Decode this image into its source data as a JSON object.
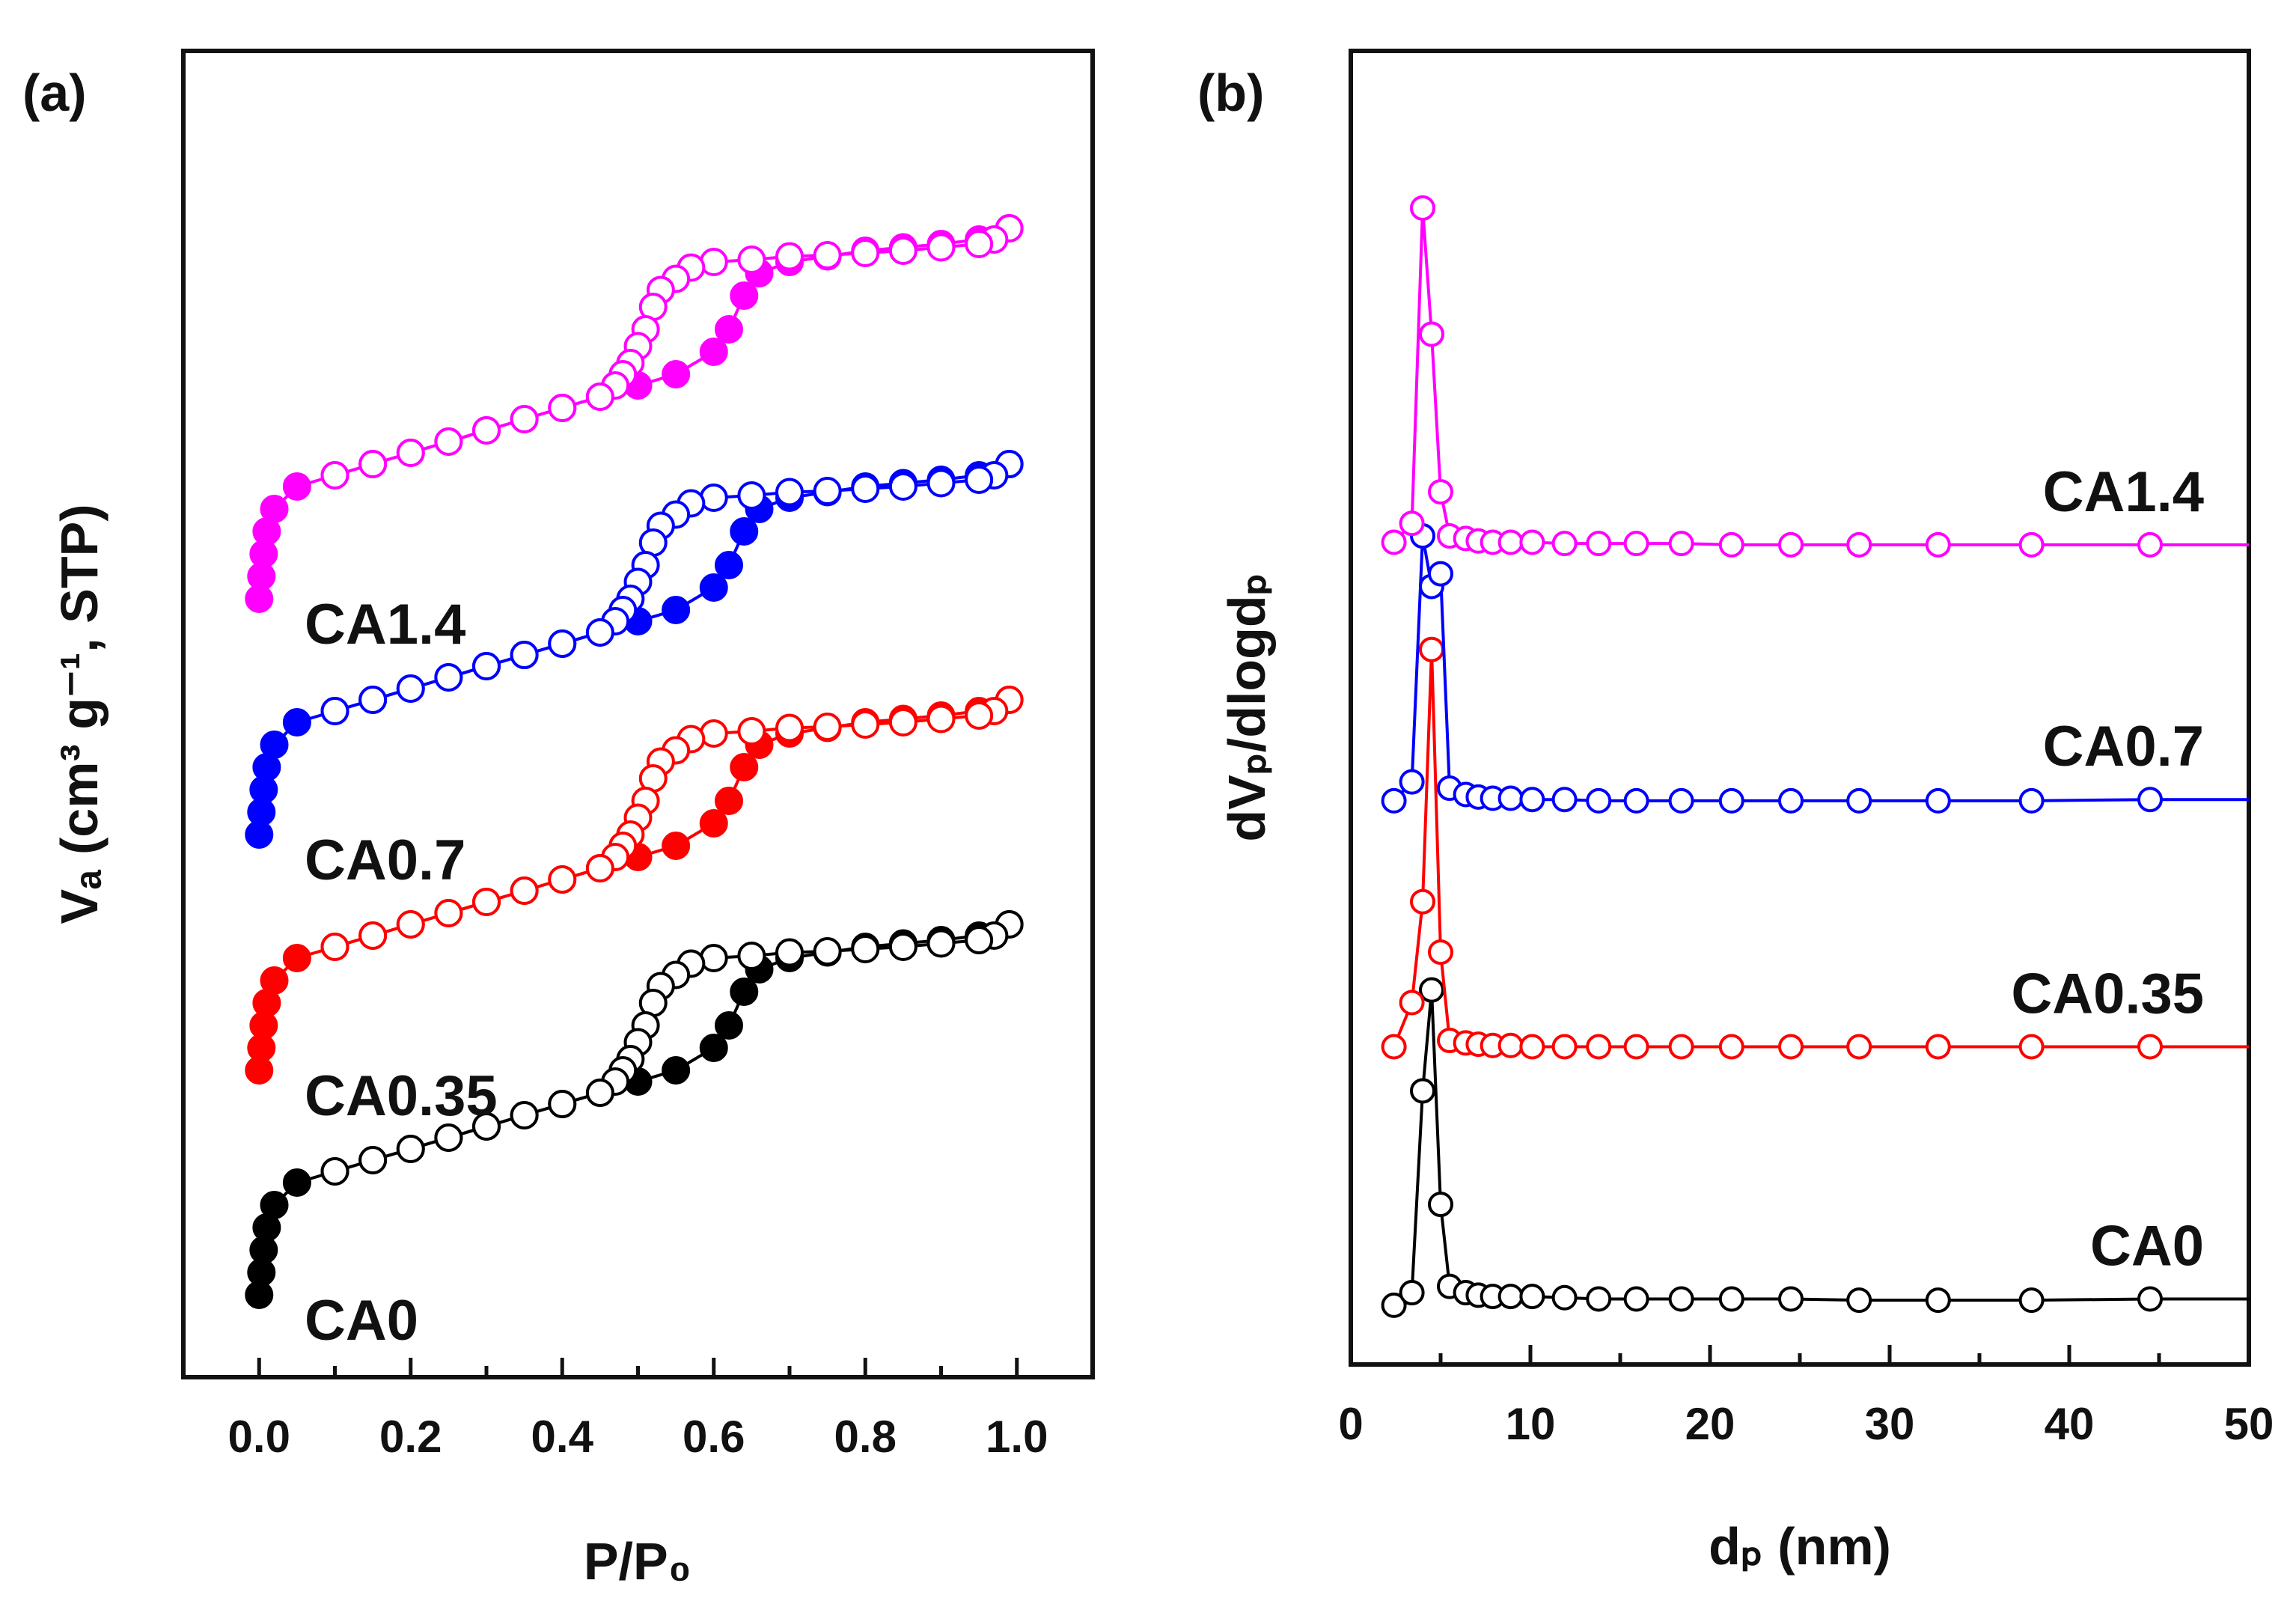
{
  "chart_data": [
    {
      "panel": "(a)",
      "type": "scatter",
      "subtype": "N2 adsorption-desorption isotherms (vertically offset, open = desorption, filled = adsorption)",
      "xlabel": "P/P₀",
      "ylabel": "Vₐ (cm³ g⁻¹, STP)",
      "xlim": [
        -0.1,
        1.1
      ],
      "ylim": [
        0,
        100
      ],
      "yticks_shown": false,
      "xticks": [
        "0.0",
        "0.2",
        "0.4",
        "0.6",
        "0.8",
        "1.0"
      ],
      "grid": false,
      "series": [
        {
          "name": "CA0",
          "label": "CA0",
          "color": "#000000",
          "adsorption": {
            "x": [
              0.0,
              0.003,
              0.006,
              0.01,
              0.02,
              0.05,
              0.1,
              0.15,
              0.2,
              0.25,
              0.3,
              0.35,
              0.4,
              0.45,
              0.5,
              0.55,
              0.6,
              0.62,
              0.64,
              0.66,
              0.7,
              0.75,
              0.8,
              0.85,
              0.9,
              0.95,
              0.99
            ],
            "y": [
              2,
              4,
              6,
              8,
              10,
              12,
              13,
              14,
              15,
              16,
              17,
              18,
              19,
              20,
              21,
              22,
              24,
              26,
              29,
              31,
              32,
              32.5,
              33,
              33.3,
              33.6,
              34,
              35
            ]
          },
          "desorption": {
            "x": [
              0.99,
              0.97,
              0.95,
              0.9,
              0.85,
              0.8,
              0.75,
              0.7,
              0.65,
              0.6,
              0.57,
              0.55,
              0.53,
              0.52,
              0.51,
              0.5,
              0.49,
              0.48,
              0.47,
              0.45,
              0.4,
              0.35,
              0.3,
              0.25,
              0.2,
              0.15,
              0.1
            ],
            "y": [
              35,
              34,
              33.6,
              33.3,
              33,
              32.8,
              32.6,
              32.5,
              32.2,
              32,
              31.5,
              30.5,
              29.5,
              28,
              26,
              24.5,
              23,
              22,
              21,
              20,
              19,
              18,
              17,
              16,
              15,
              14,
              13
            ]
          }
        },
        {
          "name": "CA0.35",
          "label": "CA0.35",
          "color": "#ff0000",
          "adsorption": {
            "x": [
              0.0,
              0.003,
              0.006,
              0.01,
              0.02,
              0.05,
              0.1,
              0.15,
              0.2,
              0.25,
              0.3,
              0.35,
              0.4,
              0.45,
              0.5,
              0.55,
              0.6,
              0.62,
              0.64,
              0.66,
              0.7,
              0.75,
              0.8,
              0.85,
              0.9,
              0.95,
              0.99
            ],
            "y": [
              22,
              24,
              26,
              28,
              30,
              32,
              33,
              34,
              35,
              36,
              37,
              38,
              39,
              40,
              41,
              42,
              44,
              46,
              49,
              51,
              52,
              52.5,
              53,
              53.3,
              53.6,
              54,
              55
            ]
          },
          "desorption": {
            "x": [
              0.99,
              0.97,
              0.95,
              0.9,
              0.85,
              0.8,
              0.75,
              0.7,
              0.65,
              0.6,
              0.57,
              0.55,
              0.53,
              0.52,
              0.51,
              0.5,
              0.49,
              0.48,
              0.47,
              0.45,
              0.4,
              0.35,
              0.3,
              0.25,
              0.2,
              0.15,
              0.1
            ],
            "y": [
              55,
              54,
              53.6,
              53.3,
              53,
              52.8,
              52.6,
              52.5,
              52.2,
              52,
              51.5,
              50.5,
              49.5,
              48,
              46,
              44.5,
              43,
              42,
              41,
              40,
              39,
              38,
              37,
              36,
              35,
              34,
              33
            ]
          }
        },
        {
          "name": "CA0.7",
          "label": "CA0.7",
          "color": "#0000ff",
          "adsorption": {
            "x": [
              0.0,
              0.003,
              0.006,
              0.01,
              0.02,
              0.05,
              0.1,
              0.15,
              0.2,
              0.25,
              0.3,
              0.35,
              0.4,
              0.45,
              0.5,
              0.55,
              0.6,
              0.62,
              0.64,
              0.66,
              0.7,
              0.75,
              0.8,
              0.85,
              0.9,
              0.95,
              0.99
            ],
            "y": [
              43,
              45,
              47,
              49,
              51,
              53,
              54,
              55,
              56,
              57,
              58,
              59,
              60,
              61,
              62,
              63,
              65,
              67,
              70,
              72,
              73,
              73.5,
              74,
              74.3,
              74.6,
              75,
              76
            ]
          },
          "desorption": {
            "x": [
              0.99,
              0.97,
              0.95,
              0.9,
              0.85,
              0.8,
              0.75,
              0.7,
              0.65,
              0.6,
              0.57,
              0.55,
              0.53,
              0.52,
              0.51,
              0.5,
              0.49,
              0.48,
              0.47,
              0.45,
              0.4,
              0.35,
              0.3,
              0.25,
              0.2,
              0.15,
              0.1
            ],
            "y": [
              76,
              75,
              74.6,
              74.3,
              74,
              73.8,
              73.6,
              73.5,
              73.2,
              73,
              72.5,
              71.5,
              70.5,
              69,
              67,
              65.5,
              64,
              63,
              62,
              61,
              60,
              59,
              58,
              57,
              56,
              55,
              54
            ]
          }
        },
        {
          "name": "CA1.4",
          "label": "CA1.4",
          "color": "#ff00ff",
          "adsorption": {
            "x": [
              0.0,
              0.003,
              0.006,
              0.01,
              0.02,
              0.05,
              0.1,
              0.15,
              0.2,
              0.25,
              0.3,
              0.35,
              0.4,
              0.45,
              0.5,
              0.55,
              0.6,
              0.62,
              0.64,
              0.66,
              0.7,
              0.75,
              0.8,
              0.85,
              0.9,
              0.95,
              0.99
            ],
            "y": [
              64,
              66,
              68,
              70,
              72,
              74,
              75,
              76,
              77,
              78,
              79,
              80,
              81,
              82,
              83,
              84,
              86,
              88,
              91,
              93,
              94,
              94.5,
              95,
              95.3,
              95.6,
              96,
              97
            ]
          },
          "desorption": {
            "x": [
              0.99,
              0.97,
              0.95,
              0.9,
              0.85,
              0.8,
              0.75,
              0.7,
              0.65,
              0.6,
              0.57,
              0.55,
              0.53,
              0.52,
              0.51,
              0.5,
              0.49,
              0.48,
              0.47,
              0.45,
              0.4,
              0.35,
              0.3,
              0.25,
              0.2,
              0.15,
              0.1
            ],
            "y": [
              97,
              96,
              95.6,
              95.3,
              95,
              94.8,
              94.6,
              94.5,
              94.2,
              94,
              93.5,
              92.5,
              91.5,
              90,
              88,
              86.5,
              85,
              84,
              83,
              82,
              81,
              80,
              79,
              78,
              77,
              76,
              75
            ]
          }
        }
      ]
    },
    {
      "panel": "(b)",
      "type": "line",
      "subtype": "pore size distribution (vertically offset)",
      "xlabel": "dₚ (nm)",
      "ylabel": "dVₚ/dlogdₚ",
      "xlim": [
        0,
        50
      ],
      "ylim": [
        0,
        100
      ],
      "yticks_shown": false,
      "xticks": [
        "0",
        "10",
        "20",
        "30",
        "40",
        "50"
      ],
      "grid": false,
      "x": [
        2.4,
        3.4,
        4.0,
        4.5,
        5.0,
        5.5,
        6.4,
        7.1,
        7.9,
        8.9,
        10.1,
        11.9,
        13.8,
        15.9,
        18.4,
        21.2,
        24.5,
        28.3,
        32.7,
        37.9,
        44.5
      ],
      "series": [
        {
          "name": "CA0",
          "label": "CA0",
          "color": "#000000",
          "y": [
            6,
            7,
            23,
            31,
            14,
            7.5,
            7,
            6.8,
            6.7,
            6.7,
            6.7,
            6.6,
            6.5,
            6.5,
            6.5,
            6.5,
            6.5,
            6.4,
            6.4,
            6.4,
            6.5
          ]
        },
        {
          "name": "CA0.35",
          "label": "CA0.35",
          "color": "#ff0000",
          "y": [
            26.5,
            30,
            38,
            58,
            34,
            27,
            26.8,
            26.7,
            26.6,
            26.6,
            26.5,
            26.5,
            26.5,
            26.5,
            26.5,
            26.5,
            26.5,
            26.5,
            26.5,
            26.5,
            26.5
          ]
        },
        {
          "name": "CA0.7",
          "label": "CA0.7",
          "color": "#0000ff",
          "y": [
            46,
            47.5,
            67,
            63,
            64,
            47,
            46.5,
            46.3,
            46.2,
            46.2,
            46.1,
            46.1,
            46,
            46,
            46,
            46,
            46,
            46,
            46,
            46,
            46.1
          ]
        },
        {
          "name": "CA1.4",
          "label": "CA1.4",
          "color": "#ff00ff",
          "y": [
            66.5,
            68,
            93,
            83,
            70.5,
            67,
            66.8,
            66.6,
            66.5,
            66.5,
            66.5,
            66.4,
            66.4,
            66.4,
            66.4,
            66.3,
            66.3,
            66.3,
            66.3,
            66.3,
            66.3
          ]
        }
      ]
    }
  ]
}
